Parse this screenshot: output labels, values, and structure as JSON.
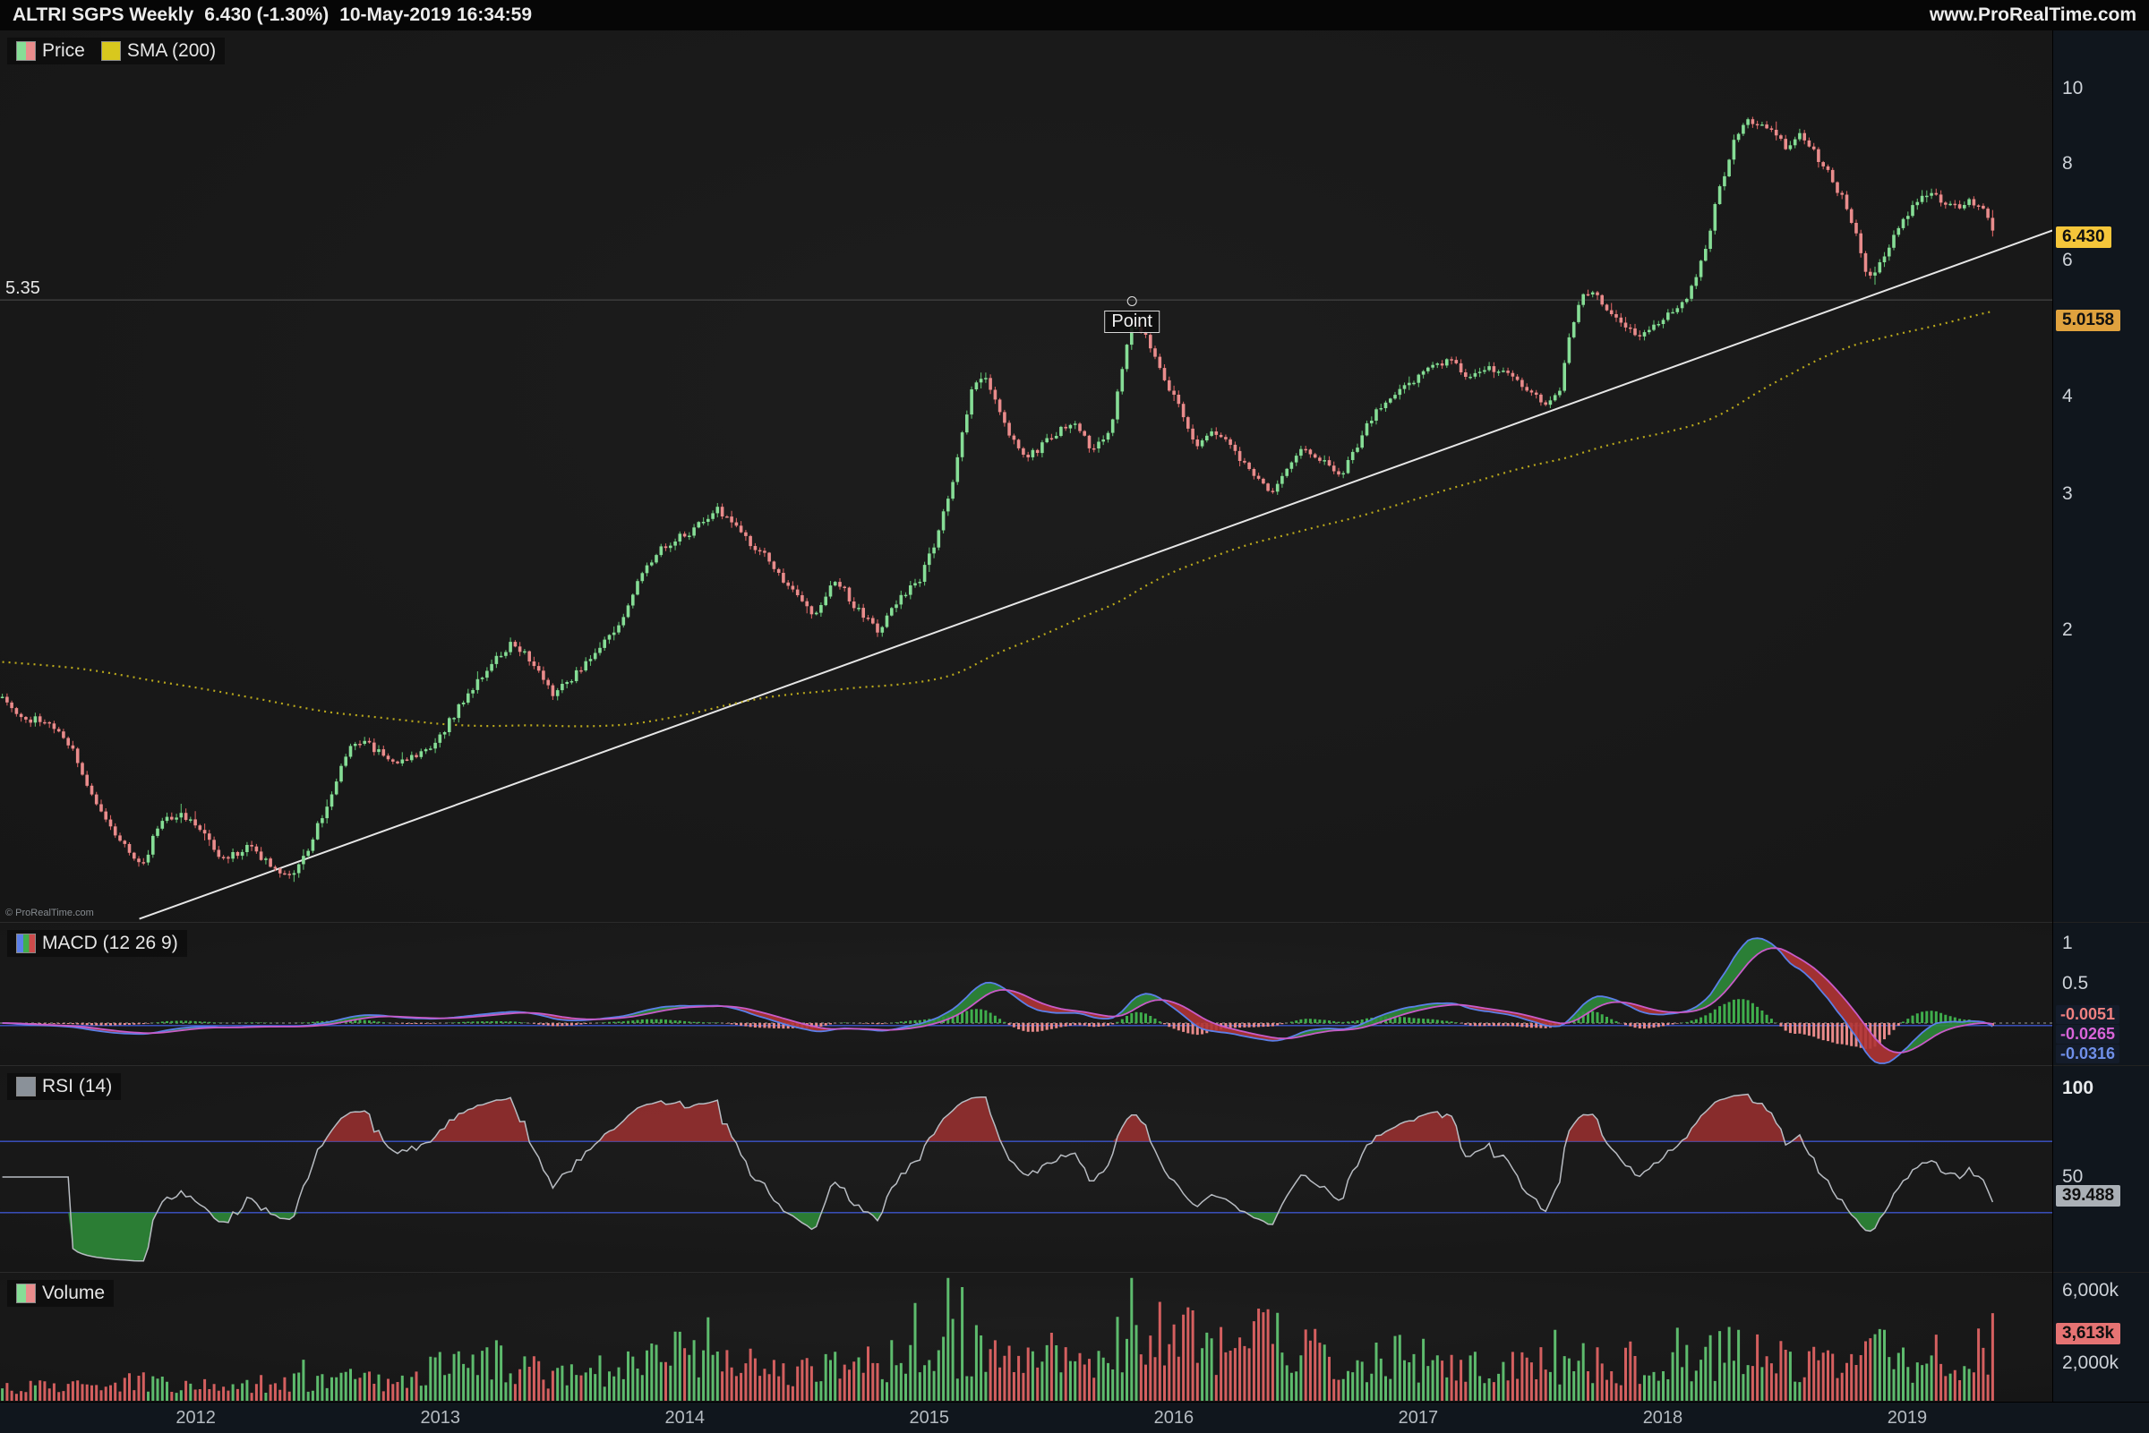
{
  "topbar": {
    "instrument": "ALTRI SGPS Weekly",
    "quote": "6.430 (-1.30%)",
    "datetime": "10-May-2019 16:34:59",
    "website": "www.ProRealTime.com"
  },
  "watermark": "© ProRealTime.com",
  "colors": {
    "candle_up": "#86dd96",
    "candle_down": "#e98c8c",
    "candle_up_stroke": "#5dbb6d",
    "candle_down_stroke": "#d45f5f",
    "sma": "#b9a81c",
    "trendline": "#e6e6e6",
    "macd_line": "#5b7fe8",
    "signal_line": "#c85bc8",
    "hist_up": "#3fae4c",
    "hist_down": "#cc4b4b",
    "fill_up": "#2e8b3a",
    "fill_down": "#b03434",
    "rsi_line": "#b8bcc2",
    "rsi_over": "#9c3030",
    "rsi_under": "#2f8f3a",
    "threshold_blue": "#3d55cc",
    "axis_bg": "#10161d",
    "panel_bg": "#191919",
    "badge_price_bg": "#f5c63a",
    "badge_sma_bg": "#e0a23e",
    "badge_vol_bg": "#e57373",
    "badge_rsi_bg": "#aab0b6"
  },
  "panels": {
    "price": {
      "legend": [
        {
          "label": "Price"
        },
        {
          "label": "SMA (200)"
        }
      ],
      "axis_ticks": [
        10,
        8,
        6,
        4,
        3,
        2
      ],
      "last_price_badge": {
        "text": "6.430",
        "value": 6.43
      },
      "sma_badge": {
        "text": "5.0158",
        "value": 5.0158
      },
      "hline": {
        "value": 5.35,
        "label": "5.35"
      },
      "annotation": {
        "label": "Point",
        "t": 2015.83,
        "price": 5.33
      }
    },
    "macd": {
      "legend_label": "MACD (12 26 9)",
      "params": [
        12,
        26,
        9
      ],
      "axis_ticks": [
        {
          "label": "1",
          "value": 1
        },
        {
          "label": "0.5",
          "value": 0.5
        }
      ],
      "badges": [
        {
          "text": "-0.0051",
          "value": -0.0051,
          "color": "#ef8080"
        },
        {
          "text": "-0.0265",
          "value": -0.0265,
          "color": "#d964d9"
        },
        {
          "text": "-0.0316",
          "value": -0.0316,
          "color": "#6f8fe8"
        }
      ]
    },
    "rsi": {
      "legend_label": "RSI (14)",
      "period": 14,
      "axis_ticks": [
        {
          "label": "100",
          "value": 100
        },
        {
          "label": "50",
          "value": 50
        }
      ],
      "thresholds": [
        70,
        30
      ],
      "badge": {
        "text": "39.488",
        "value": 39.488
      }
    },
    "volume": {
      "legend_label": "Volume",
      "axis_ticks": [
        {
          "label": "6,000k",
          "value": 6000
        },
        {
          "label": "2,000k",
          "value": 2000
        }
      ],
      "badge": {
        "text": "3,613k",
        "value": 3613
      }
    }
  },
  "x_axis": {
    "years": [
      2012,
      2013,
      2014,
      2015,
      2016,
      2017,
      2018,
      2019
    ]
  },
  "chart_data": {
    "type": "candlestick",
    "title": "ALTRI SGPS Weekly",
    "timeframe": "weekly",
    "y_scale": "log",
    "t_start": 2011.2,
    "t_end": 2019.36,
    "ylim": [
      0.84,
      11
    ],
    "price_keypoints": [
      [
        2011.2,
        1.68
      ],
      [
        2011.28,
        1.55
      ],
      [
        2011.4,
        1.52
      ],
      [
        2011.5,
        1.4
      ],
      [
        2011.58,
        1.22
      ],
      [
        2011.7,
        1.06
      ],
      [
        2011.78,
        0.99
      ],
      [
        2011.86,
        1.14
      ],
      [
        2011.95,
        1.16
      ],
      [
        2012.03,
        1.09
      ],
      [
        2012.12,
        1.01
      ],
      [
        2012.22,
        1.06
      ],
      [
        2012.3,
        1.0
      ],
      [
        2012.38,
        0.96
      ],
      [
        2012.46,
        1.04
      ],
      [
        2012.56,
        1.24
      ],
      [
        2012.64,
        1.44
      ],
      [
        2012.72,
        1.42
      ],
      [
        2012.8,
        1.36
      ],
      [
        2012.9,
        1.37
      ],
      [
        2013.0,
        1.46
      ],
      [
        2013.1,
        1.64
      ],
      [
        2013.2,
        1.8
      ],
      [
        2013.3,
        1.94
      ],
      [
        2013.38,
        1.81
      ],
      [
        2013.46,
        1.65
      ],
      [
        2013.56,
        1.77
      ],
      [
        2013.66,
        1.9
      ],
      [
        2013.76,
        2.12
      ],
      [
        2013.84,
        2.44
      ],
      [
        2013.94,
        2.6
      ],
      [
        2014.04,
        2.7
      ],
      [
        2014.13,
        2.89
      ],
      [
        2014.22,
        2.69
      ],
      [
        2014.32,
        2.52
      ],
      [
        2014.43,
        2.28
      ],
      [
        2014.53,
        2.07
      ],
      [
        2014.62,
        2.34
      ],
      [
        2014.7,
        2.14
      ],
      [
        2014.79,
        2.0
      ],
      [
        2014.88,
        2.21
      ],
      [
        2014.96,
        2.32
      ],
      [
        2015.04,
        2.68
      ],
      [
        2015.11,
        3.25
      ],
      [
        2015.17,
        4.05
      ],
      [
        2015.23,
        4.28
      ],
      [
        2015.3,
        3.72
      ],
      [
        2015.38,
        3.34
      ],
      [
        2015.46,
        3.46
      ],
      [
        2015.53,
        3.62
      ],
      [
        2015.6,
        3.7
      ],
      [
        2015.67,
        3.42
      ],
      [
        2015.74,
        3.58
      ],
      [
        2015.8,
        4.55
      ],
      [
        2015.84,
        5.02
      ],
      [
        2015.89,
        4.8
      ],
      [
        2015.95,
        4.28
      ],
      [
        2016.02,
        3.92
      ],
      [
        2016.09,
        3.46
      ],
      [
        2016.16,
        3.66
      ],
      [
        2016.23,
        3.46
      ],
      [
        2016.31,
        3.2
      ],
      [
        2016.39,
        3.01
      ],
      [
        2016.47,
        3.26
      ],
      [
        2016.53,
        3.47
      ],
      [
        2016.61,
        3.3
      ],
      [
        2016.68,
        3.16
      ],
      [
        2016.76,
        3.52
      ],
      [
        2016.83,
        3.86
      ],
      [
        2016.9,
        4.02
      ],
      [
        2016.98,
        4.22
      ],
      [
        2017.06,
        4.36
      ],
      [
        2017.14,
        4.46
      ],
      [
        2017.21,
        4.26
      ],
      [
        2017.29,
        4.36
      ],
      [
        2017.37,
        4.3
      ],
      [
        2017.45,
        4.1
      ],
      [
        2017.52,
        3.92
      ],
      [
        2017.58,
        4.12
      ],
      [
        2017.63,
        4.92
      ],
      [
        2017.68,
        5.55
      ],
      [
        2017.73,
        5.38
      ],
      [
        2017.79,
        5.18
      ],
      [
        2017.85,
        4.96
      ],
      [
        2017.91,
        4.76
      ],
      [
        2017.97,
        4.96
      ],
      [
        2018.04,
        5.16
      ],
      [
        2018.11,
        5.42
      ],
      [
        2018.17,
        6.1
      ],
      [
        2018.23,
        7.35
      ],
      [
        2018.29,
        8.55
      ],
      [
        2018.35,
        9.15
      ],
      [
        2018.41,
        9.0
      ],
      [
        2018.46,
        8.82
      ],
      [
        2018.51,
        8.42
      ],
      [
        2018.56,
        8.88
      ],
      [
        2018.62,
        8.3
      ],
      [
        2018.68,
        7.8
      ],
      [
        2018.74,
        7.18
      ],
      [
        2018.79,
        6.55
      ],
      [
        2018.84,
        5.62
      ],
      [
        2018.9,
        6.02
      ],
      [
        2018.96,
        6.62
      ],
      [
        2019.02,
        7.02
      ],
      [
        2019.08,
        7.36
      ],
      [
        2019.14,
        7.18
      ],
      [
        2019.2,
        7.02
      ],
      [
        2019.26,
        7.16
      ],
      [
        2019.31,
        7.04
      ],
      [
        2019.36,
        6.43
      ]
    ],
    "volume_keypoints_k": [
      [
        2011.2,
        700
      ],
      [
        2011.5,
        600
      ],
      [
        2011.8,
        950
      ],
      [
        2012.0,
        650
      ],
      [
        2012.3,
        800
      ],
      [
        2012.6,
        1050
      ],
      [
        2012.9,
        950
      ],
      [
        2013.02,
        1900
      ],
      [
        2013.1,
        2600
      ],
      [
        2013.3,
        1500
      ],
      [
        2013.5,
        1250
      ],
      [
        2013.7,
        1550
      ],
      [
        2013.9,
        2200
      ],
      [
        2014.1,
        2600
      ],
      [
        2014.3,
        1700
      ],
      [
        2014.5,
        1450
      ],
      [
        2014.7,
        1650
      ],
      [
        2014.9,
        1950
      ],
      [
        2015.08,
        2600
      ],
      [
        2015.2,
        2250
      ],
      [
        2015.4,
        1950
      ],
      [
        2015.6,
        2350
      ],
      [
        2015.8,
        2700
      ],
      [
        2015.9,
        3600
      ],
      [
        2016.0,
        3900
      ],
      [
        2016.1,
        2900
      ],
      [
        2016.22,
        2450
      ],
      [
        2016.35,
        3050
      ],
      [
        2016.5,
        2450
      ],
      [
        2016.7,
        1950
      ],
      [
        2016.9,
        2150
      ],
      [
        2017.1,
        1850
      ],
      [
        2017.3,
        1550
      ],
      [
        2017.5,
        1450
      ],
      [
        2017.7,
        1950
      ],
      [
        2017.9,
        1550
      ],
      [
        2018.0,
        1450
      ],
      [
        2018.2,
        2050
      ],
      [
        2018.35,
        2650
      ],
      [
        2018.5,
        1750
      ],
      [
        2018.65,
        1650
      ],
      [
        2018.8,
        2050
      ],
      [
        2018.9,
        2450
      ],
      [
        2019.0,
        1750
      ],
      [
        2019.1,
        2150
      ],
      [
        2019.2,
        1950
      ],
      [
        2019.3,
        2300
      ],
      [
        2019.36,
        3613
      ]
    ],
    "sma_period": 200,
    "trendline": [
      [
        2011.77,
        0.85
      ],
      [
        2019.4,
        6.25
      ]
    ],
    "horizontal_level": 5.35,
    "indicators": [
      "MACD (12 26 9)",
      "RSI (14)",
      "Volume"
    ]
  }
}
